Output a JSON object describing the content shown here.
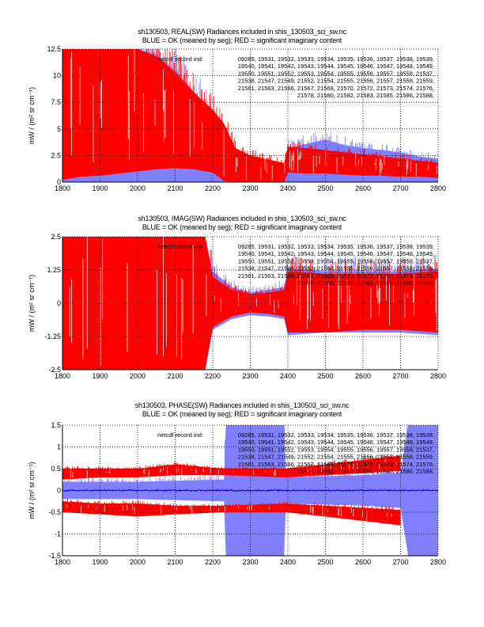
{
  "colors": {
    "ok_light": "#8080ff",
    "ok_mean": "#0000ff",
    "imag": "#ff0000",
    "axis": "#000000",
    "background": "#ffffff"
  },
  "record_label": "netcdf record ind:",
  "record_lines": [
    "09285, 19531, 19532, 19533, 19534, 19535, 19536, 19537, 19538, 19539,",
    "19540, 19541, 19542, 19543, 19544, 19545, 19546, 19547, 19548, 19549,",
    "19550, 19551, 19552, 19553, 19554, 19555, 19556, 19557, 19558, 21537,",
    "21538, 21547, 21549, 21552, 21554, 21555, 21556, 21557, 21558, 21559,",
    "21561, 21563, 21566, 21567, 21569, 21570, 21572, 21573, 21574, 21576,",
    "21578, 21580, 21582, 21583, 21585, 21586, 21588,"
  ],
  "chart_data": [
    {
      "type": "line",
      "title": "sh130503, REAL(SW) Radiances included in shis_130503_sci_sw.nc",
      "subtitle": "BLUE = OK (meaned by seg); RED = significant imaginary content",
      "xlabel": "",
      "ylabel": "mW / (m² sr cm⁻¹)",
      "xlim": [
        1800,
        2800
      ],
      "ylim": [
        0,
        12.5
      ],
      "xticks": [
        1800,
        1900,
        2000,
        2100,
        2200,
        2300,
        2400,
        2500,
        2600,
        2700,
        2800
      ],
      "yticks": [
        0,
        2.5,
        5,
        7.5,
        10,
        12.5
      ],
      "ytick_labels": [
        "0",
        "2.5",
        "5",
        "7.5",
        "10",
        "12.5"
      ],
      "grid": true,
      "series": [
        {
          "name": "OK spectra (light blue envelope)",
          "color_key": "ok_light",
          "x": [
            1800,
            1850,
            1900,
            1950,
            2000,
            2050,
            2100,
            2150,
            2200,
            2230,
            2240,
            2300,
            2380,
            2390,
            2400,
            2450,
            2500,
            2550,
            2600,
            2650,
            2700,
            2750,
            2800
          ],
          "upper": [
            12.5,
            12.5,
            12.5,
            12.5,
            12.5,
            12.0,
            10.5,
            8.5,
            6.5,
            4.5,
            2.6,
            1.6,
            1.4,
            1.3,
            3.2,
            3.6,
            4.0,
            3.5,
            3.2,
            3.0,
            2.8,
            2.4,
            2.2
          ],
          "lower": [
            0,
            0,
            0,
            0,
            0,
            0,
            0,
            0,
            0,
            0,
            0,
            0,
            0,
            0,
            0,
            0,
            0,
            0,
            0,
            0,
            0,
            0,
            0
          ]
        },
        {
          "name": "OK mean (blue)",
          "color_key": "ok_mean",
          "x": [
            1800,
            1900,
            2000,
            2050,
            2100,
            2150,
            2200,
            2230,
            2300,
            2390,
            2400,
            2500,
            2600,
            2700,
            2800
          ],
          "y": [
            7.5,
            5.0,
            3.3,
            2.9,
            2.7,
            2.3,
            1.9,
            1.4,
            1.0,
            0.8,
            1.9,
            1.7,
            1.4,
            1.2,
            1.0
          ]
        },
        {
          "name": "Significant imaginary (red)",
          "color_key": "imag",
          "x": [
            1800,
            1850,
            1900,
            1950,
            2000,
            2050,
            2100,
            2150,
            2200,
            2230,
            2260,
            2300,
            2350,
            2390,
            2400,
            2450,
            2500,
            2550,
            2600,
            2650,
            2700,
            2750,
            2800
          ],
          "upper": [
            12.5,
            12.5,
            12.5,
            12.5,
            12.5,
            11.8,
            10.3,
            8.4,
            6.8,
            5.5,
            3.2,
            2.5,
            2.1,
            1.8,
            3.3,
            3.2,
            3.0,
            2.8,
            2.6,
            2.4,
            2.2,
            2.0,
            1.8
          ],
          "lower": [
            0.2,
            0.5,
            0.6,
            0.8,
            1.0,
            1.2,
            1.3,
            1.2,
            0.9,
            0.1,
            0.0,
            0.0,
            0.0,
            0.0,
            0.9,
            0.8,
            0.8,
            0.7,
            0.6,
            0.6,
            0.5,
            0.5,
            0.4
          ]
        }
      ],
      "annotation": "netcdf record ind list (top-right)"
    },
    {
      "type": "line",
      "title": "sh130503, IMAG(SW) Radiances included in shis_130503_sci_sw.nc",
      "subtitle": "BLUE = OK (meaned by seg); RED = significant imaginary content",
      "xlabel": "",
      "ylabel": "mW / (m² sr cm⁻¹)",
      "xlim": [
        1800,
        2800
      ],
      "ylim": [
        -2.5,
        2.5
      ],
      "xticks": [
        1800,
        1900,
        2000,
        2100,
        2200,
        2300,
        2400,
        2500,
        2600,
        2700,
        2800
      ],
      "yticks": [
        -2.5,
        -1.25,
        0,
        1.25,
        2.5
      ],
      "ytick_labels": [
        "-2.5",
        "-1.25",
        "0",
        "1.25",
        "2.5"
      ],
      "grid": true,
      "series": [
        {
          "name": "OK spectra (light blue envelope)",
          "color_key": "ok_light",
          "x": [
            1800,
            2100,
            2180,
            2200,
            2250,
            2300,
            2350,
            2390,
            2400,
            2500,
            2600,
            2700,
            2800
          ],
          "upper": [
            2.5,
            2.5,
            2.5,
            1.2,
            0.6,
            0.4,
            0.5,
            0.6,
            1.3,
            1.2,
            1.2,
            1.2,
            1.3
          ],
          "lower": [
            -2.5,
            -2.5,
            -2.5,
            -1.0,
            -0.6,
            -0.45,
            -0.5,
            -0.6,
            -1.2,
            -1.1,
            -1.1,
            -1.1,
            -1.2
          ]
        },
        {
          "name": "OK mean (blue)",
          "color_key": "ok_mean",
          "x": [
            1800,
            1900,
            2000,
            2100,
            2180,
            2200,
            2300,
            2400,
            2500,
            2600,
            2700,
            2800
          ],
          "y": [
            0.05,
            0.1,
            0.15,
            0.2,
            0.25,
            0.05,
            0.0,
            0.0,
            0.0,
            0.0,
            0.0,
            0.0
          ]
        },
        {
          "name": "Significant imaginary (red)",
          "color_key": "imag",
          "x": [
            1800,
            2100,
            2180,
            2200,
            2250,
            2300,
            2350,
            2390,
            2400,
            2500,
            2600,
            2700,
            2800
          ],
          "upper": [
            2.5,
            2.5,
            2.5,
            1.0,
            0.5,
            0.35,
            0.4,
            0.5,
            1.2,
            1.1,
            1.1,
            1.1,
            1.2
          ],
          "lower": [
            -2.5,
            -2.5,
            -2.5,
            -0.9,
            -0.5,
            -0.35,
            -0.4,
            -0.5,
            -1.1,
            -1.1,
            -1.0,
            -1.0,
            -1.1
          ]
        }
      ],
      "annotation": "netcdf record ind list (top-right)"
    },
    {
      "type": "line",
      "title": "sh130503, PHASE(SW) Radiances included in shis_130503_sci_sw.nc",
      "subtitle": "BLUE = OK (meaned by seg); RED = significant imaginary content",
      "xlabel": "",
      "ylabel": "mW / (m² sr cm⁻¹)",
      "xlim": [
        1800,
        2800
      ],
      "ylim": [
        -1.5,
        1.5
      ],
      "xticks": [
        1800,
        1900,
        2000,
        2100,
        2200,
        2300,
        2400,
        2500,
        2600,
        2700,
        2800
      ],
      "yticks": [
        -1.5,
        -1,
        -0.5,
        0,
        0.5,
        1,
        1.5
      ],
      "ytick_labels": [
        "-1.5",
        "-1",
        "-0.5",
        "0",
        "0.5",
        "1",
        "1.5"
      ],
      "grid": true,
      "series": [
        {
          "name": "OK spectra (light blue envelope)",
          "color_key": "ok_light",
          "x": [
            1800,
            2000,
            2230,
            2235,
            2390,
            2395,
            2600,
            2700,
            2720,
            2800
          ],
          "upper": [
            0.2,
            0.2,
            0.25,
            1.5,
            1.5,
            0.3,
            0.35,
            0.4,
            1.5,
            1.5
          ],
          "lower": [
            -0.2,
            -0.2,
            -0.25,
            -1.5,
            -1.5,
            -0.3,
            -0.35,
            -0.4,
            -1.5,
            -1.5
          ]
        },
        {
          "name": "OK mean (blue)",
          "color_key": "ok_mean",
          "x": [
            1800,
            2800
          ],
          "y": [
            0.0,
            0.0
          ]
        },
        {
          "name": "Significant imaginary (red, positive band)",
          "color_key": "imag",
          "x": [
            1800,
            1900,
            2000,
            2100,
            2230,
            2395,
            2500,
            2600,
            2700
          ],
          "upper": [
            0.5,
            0.5,
            0.5,
            0.6,
            0.5,
            0.5,
            0.6,
            0.7,
            0.8
          ],
          "lower": [
            0.25,
            0.3,
            0.3,
            0.35,
            0.35,
            0.3,
            0.35,
            0.4,
            0.45
          ]
        },
        {
          "name": "Significant imaginary (red, negative band)",
          "color_key": "imag",
          "x": [
            1800,
            1900,
            2000,
            2100,
            2230,
            2395,
            2500,
            2600,
            2700
          ],
          "upper": [
            -0.25,
            -0.3,
            -0.3,
            -0.35,
            -0.35,
            -0.3,
            -0.35,
            -0.4,
            -0.45
          ],
          "lower": [
            -0.5,
            -0.55,
            -0.6,
            -0.55,
            -0.5,
            -0.5,
            -0.6,
            -0.7,
            -0.8
          ]
        }
      ],
      "annotation": "netcdf record ind list (top-right)"
    }
  ]
}
